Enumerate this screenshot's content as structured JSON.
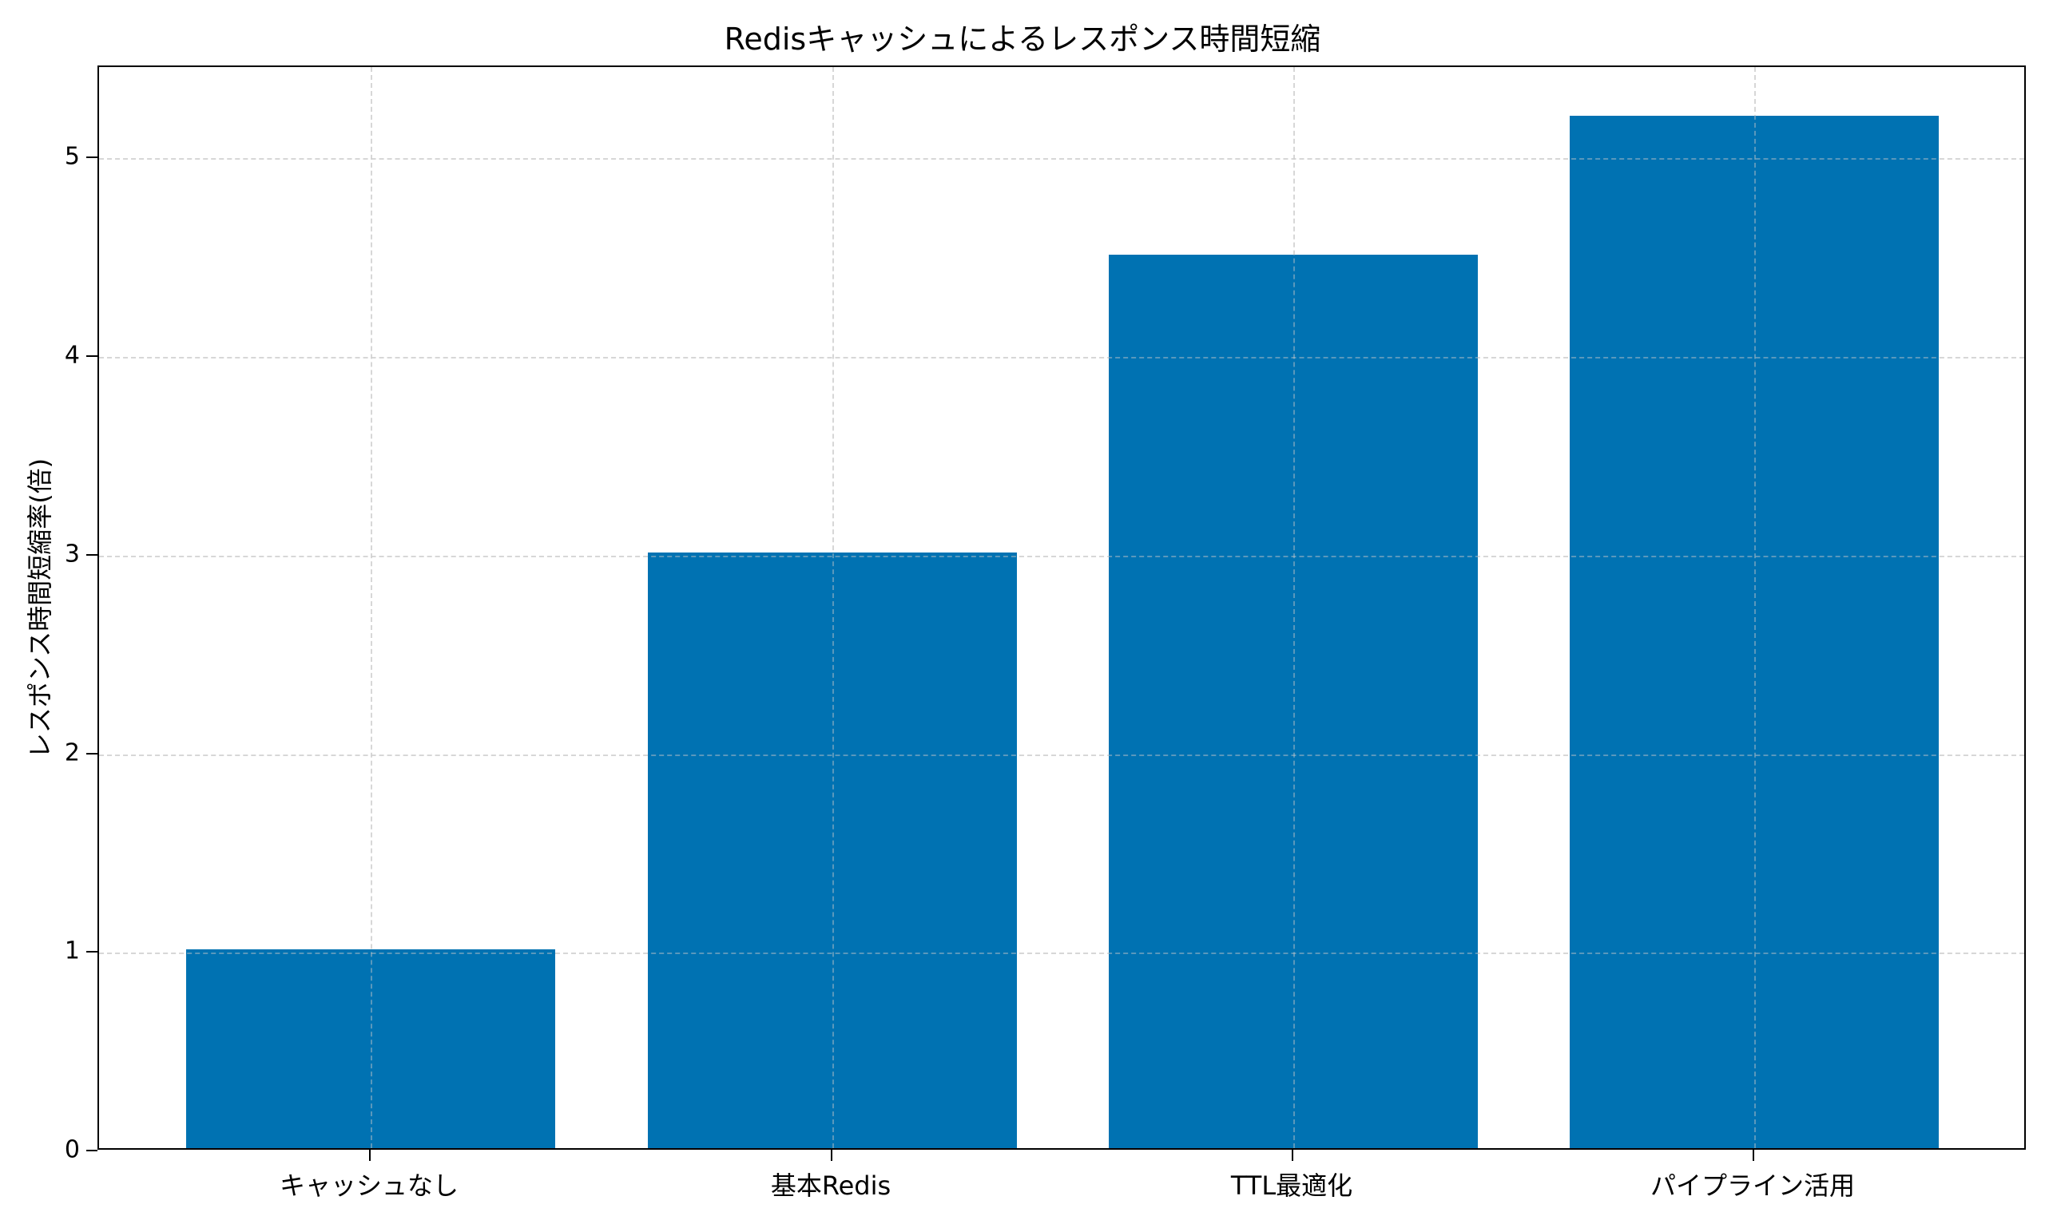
{
  "chart_data": {
    "type": "bar",
    "title": "Redisキャッシュによるレスポンス時間短縮",
    "xlabel": "",
    "ylabel": "レスポンス時間短縮率(倍)",
    "categories": [
      "キャッシュなし",
      "基本Redis",
      "TTL最適化",
      "パイプライン活用"
    ],
    "values": [
      1.0,
      3.0,
      4.5,
      5.2
    ],
    "ylim": [
      0,
      5.46
    ],
    "yticks": [
      "0",
      "1",
      "2",
      "3",
      "4",
      "5"
    ],
    "grid": true,
    "grid_style": "dashed",
    "bar_color": "#0072B2",
    "legend": null
  }
}
